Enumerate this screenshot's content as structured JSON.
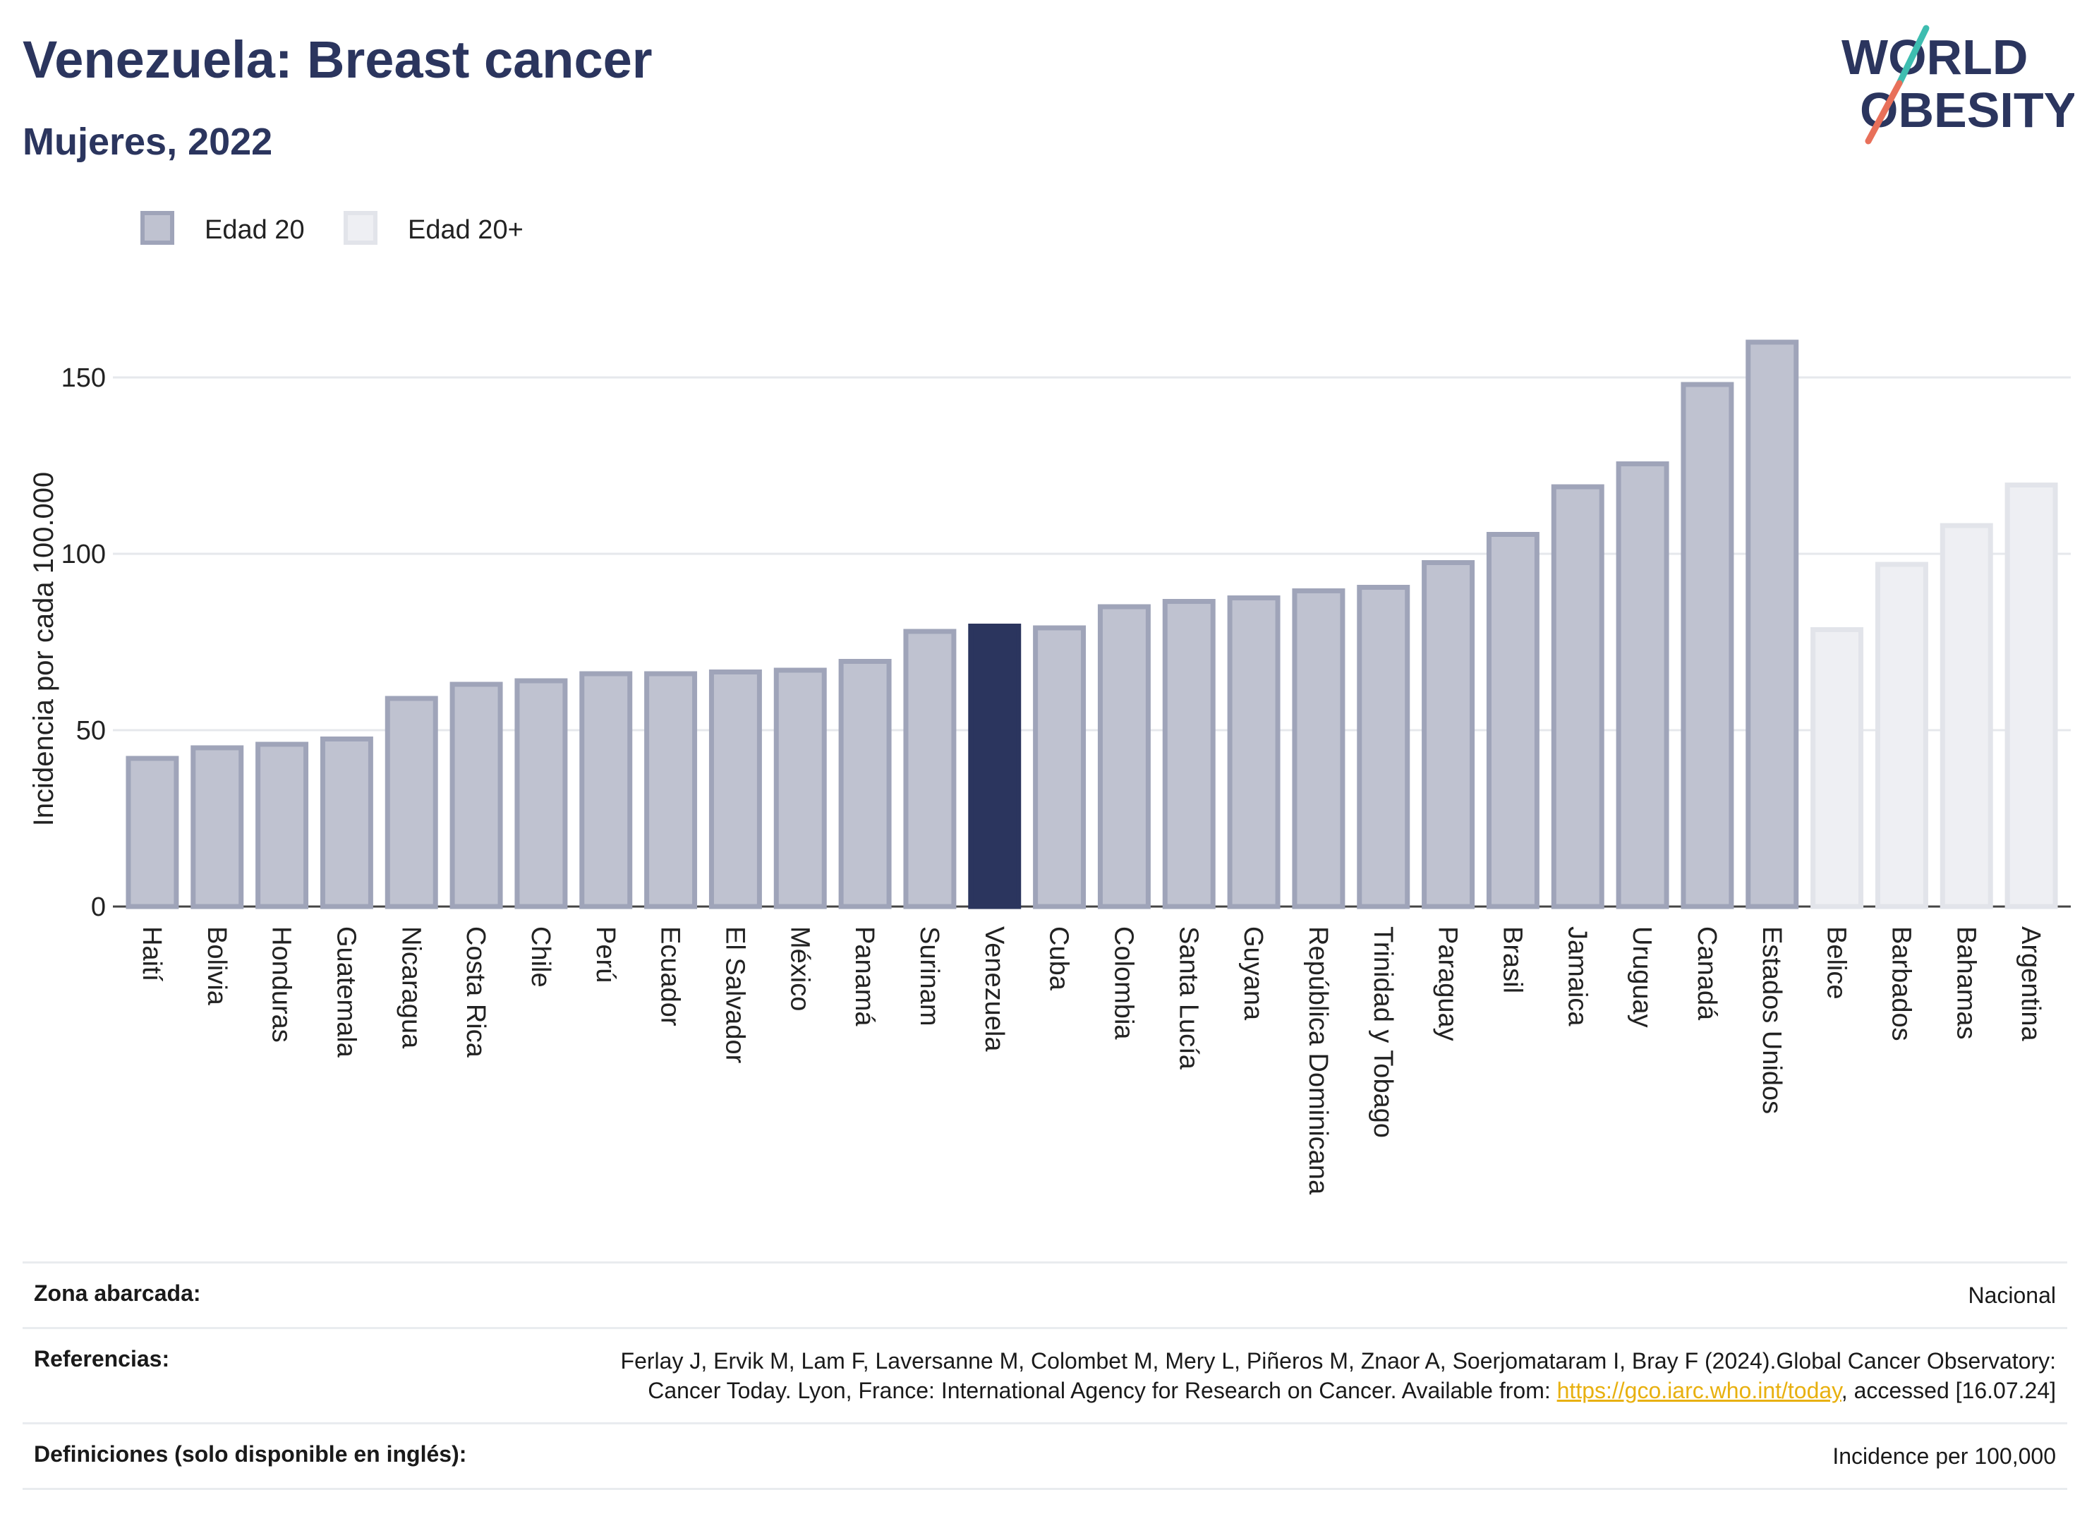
{
  "header": {
    "title": "Venezuela: Breast cancer",
    "subtitle": "Mujeres, 2022"
  },
  "logo": {
    "line1": "WORLD",
    "line2": "OBESITY"
  },
  "colors": {
    "highlight": "#2b355e",
    "edad20_fill": "#bfc2d0",
    "edad20_stroke": "#9fa4b9",
    "edad20plus_fill": "#eeeff3",
    "edad20plus_stroke": "#e2e4ea",
    "logo_teal": "#3ebdb0",
    "logo_coral": "#e8705a"
  },
  "chart_data": {
    "type": "bar",
    "ylabel": "Incidencia por cada 100.000",
    "xlabel": "",
    "ylim": [
      0,
      170
    ],
    "yticks": [
      0,
      50,
      100,
      150
    ],
    "grid": true,
    "legend_position": "top-left",
    "highlight": "Venezuela",
    "series": [
      {
        "name": "Edad 20",
        "key": "edad20"
      },
      {
        "name": "Edad 20+",
        "key": "edad20plus"
      }
    ],
    "bars": [
      {
        "category": "Haití",
        "value": 42,
        "series": "edad20"
      },
      {
        "category": "Bolivia",
        "value": 45,
        "series": "edad20"
      },
      {
        "category": "Honduras",
        "value": 46,
        "series": "edad20"
      },
      {
        "category": "Guatemala",
        "value": 47.5,
        "series": "edad20"
      },
      {
        "category": "Nicaragua",
        "value": 59,
        "series": "edad20"
      },
      {
        "category": "Costa Rica",
        "value": 63,
        "series": "edad20"
      },
      {
        "category": "Chile",
        "value": 64,
        "series": "edad20"
      },
      {
        "category": "Perú",
        "value": 66,
        "series": "edad20"
      },
      {
        "category": "Ecuador",
        "value": 66,
        "series": "edad20"
      },
      {
        "category": "El Salvador",
        "value": 66.5,
        "series": "edad20"
      },
      {
        "category": "México",
        "value": 67,
        "series": "edad20"
      },
      {
        "category": "Panamá",
        "value": 69.5,
        "series": "edad20"
      },
      {
        "category": "Surinam",
        "value": 78,
        "series": "edad20"
      },
      {
        "category": "Venezuela",
        "value": 79.5,
        "series": "edad20"
      },
      {
        "category": "Cuba",
        "value": 79,
        "series": "edad20"
      },
      {
        "category": "Colombia",
        "value": 85,
        "series": "edad20"
      },
      {
        "category": "Santa Lucía",
        "value": 86.5,
        "series": "edad20"
      },
      {
        "category": "Guyana",
        "value": 87.5,
        "series": "edad20"
      },
      {
        "category": "República Dominicana",
        "value": 89.5,
        "series": "edad20"
      },
      {
        "category": "Trinidad y Tobago",
        "value": 90.5,
        "series": "edad20"
      },
      {
        "category": "Paraguay",
        "value": 97.5,
        "series": "edad20"
      },
      {
        "category": "Brasil",
        "value": 105.5,
        "series": "edad20"
      },
      {
        "category": "Jamaica",
        "value": 119,
        "series": "edad20"
      },
      {
        "category": "Uruguay",
        "value": 125.5,
        "series": "edad20"
      },
      {
        "category": "Canadá",
        "value": 148,
        "series": "edad20"
      },
      {
        "category": "Estados Unidos",
        "value": 160,
        "series": "edad20"
      },
      {
        "category": "Belice",
        "value": 78.5,
        "series": "edad20plus"
      },
      {
        "category": "Barbados",
        "value": 97,
        "series": "edad20plus"
      },
      {
        "category": "Bahamas",
        "value": 108,
        "series": "edad20plus"
      },
      {
        "category": "Argentina",
        "value": 119.5,
        "series": "edad20plus"
      }
    ]
  },
  "meta": {
    "zona_label": "Zona abarcada:",
    "zona_value": "Nacional",
    "ref_label": "Referencias:",
    "ref_text_1": "Ferlay J, Ervik M, Lam F, Laversanne M, Colombet M, Mery L, Piñeros M, Znaor A, Soerjomataram I, Bray F (2024).Global Cancer Observatory: Cancer Today. Lyon, France: International Agency for Research on Cancer. Available from: ",
    "ref_link": "https://gco.iarc.who.int/today",
    "ref_text_2": ", accessed [16.07.24]",
    "def_label": "Definiciones (solo disponible en inglés):",
    "def_value": "Incidence per 100,000"
  }
}
